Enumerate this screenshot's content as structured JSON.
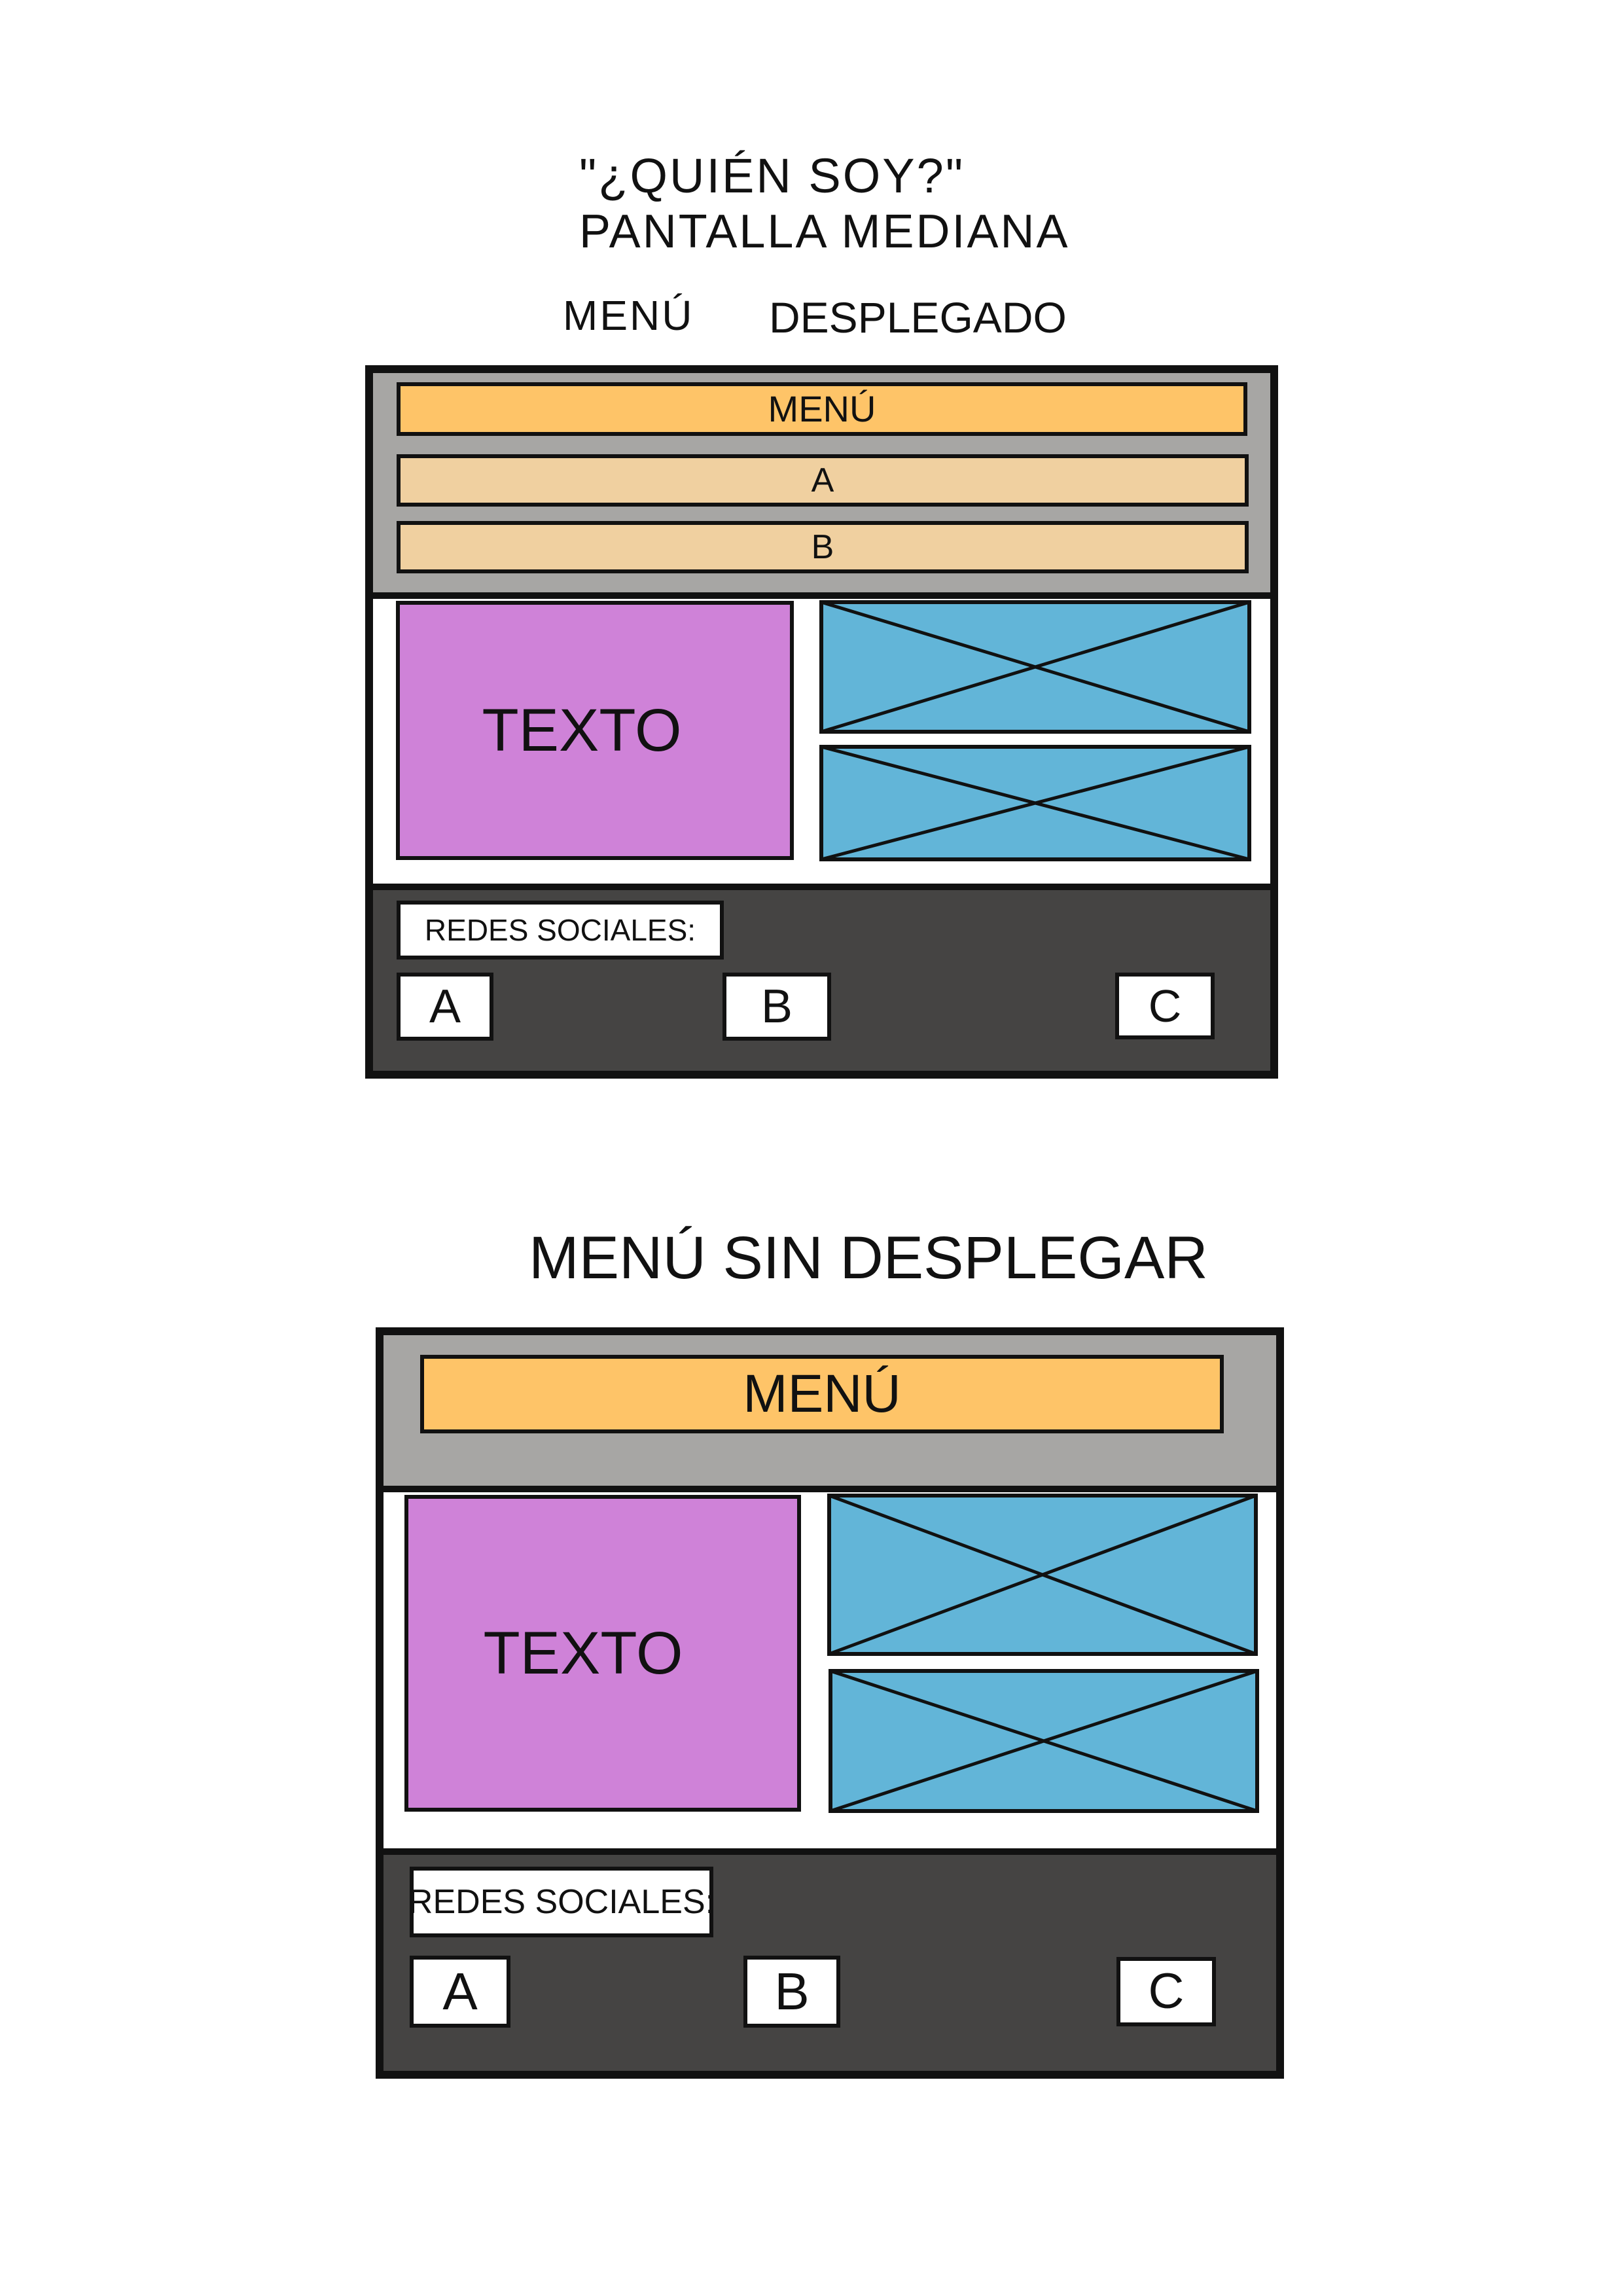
{
  "header": {
    "title": "\"¿QUIÉN SOY?\"",
    "subtitle": "PANTALLA MEDIANA"
  },
  "wireframe_expanded": {
    "caption_left": "MENÚ",
    "caption_right": "DESPLEGADO",
    "menu_label": "MENÚ",
    "menu_items": [
      "A",
      "B"
    ],
    "text_block": "TEXTO",
    "social_label": "REDES SOCIALES:",
    "social_buttons": [
      "A",
      "B",
      "C"
    ]
  },
  "wireframe_collapsed": {
    "caption": "MENÚ SIN DESPLEGAR",
    "menu_label": "MENÚ",
    "text_block": "TEXTO",
    "social_label": "REDES SOCIALES:",
    "social_buttons": [
      "A",
      "B",
      "C"
    ]
  },
  "colors": {
    "menu_bar": "#fec468",
    "menu_item": "#f0d0a0",
    "menu_band": "#a7a6a4",
    "text_block": "#cf82d8",
    "image_placeholder": "#62b5d8",
    "footer": "#454443"
  }
}
